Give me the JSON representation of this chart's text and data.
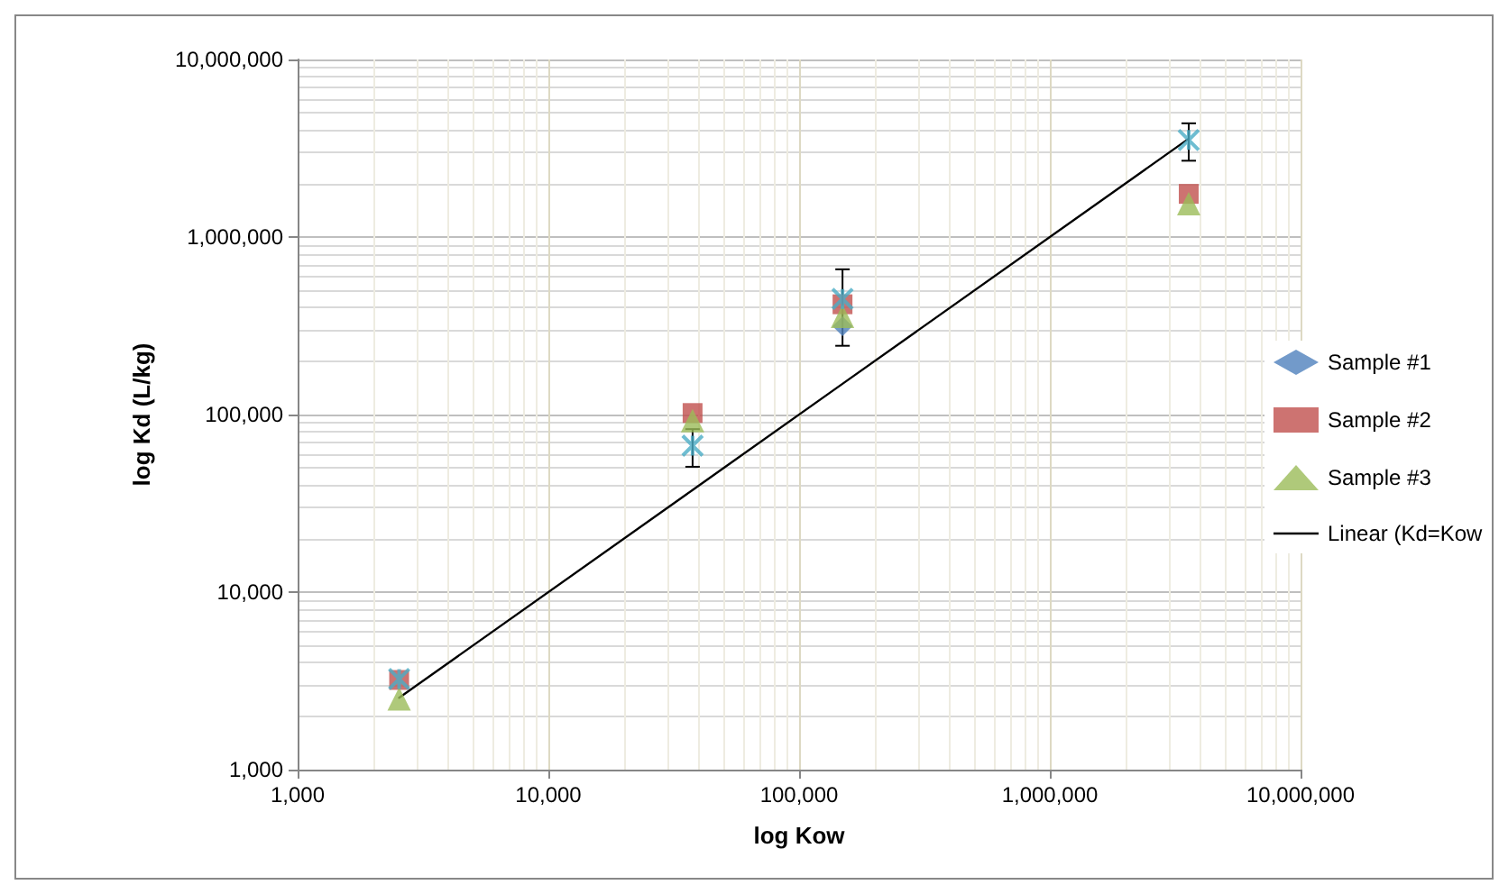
{
  "chart_data": {
    "type": "scatter",
    "xlabel": "log Kow",
    "ylabel": "log Kd (L/kg)",
    "log": "xy",
    "grid": true,
    "legend": "right",
    "xlim": [
      1000,
      10000000
    ],
    "ylim": [
      1000,
      10000000
    ],
    "xticks": [
      {
        "value": 1000,
        "label": "1,000"
      },
      {
        "value": 10000,
        "label": "10,000"
      },
      {
        "value": 100000,
        "label": "100,000"
      },
      {
        "value": 1000000,
        "label": "1,000,000"
      },
      {
        "value": 10000000,
        "label": "10,000,000"
      }
    ],
    "yticks": [
      {
        "value": 1000,
        "label": "1,000"
      },
      {
        "value": 10000,
        "label": "10,000"
      },
      {
        "value": 100000,
        "label": "100,000"
      },
      {
        "value": 1000000,
        "label": "1,000,000"
      },
      {
        "value": 10000000,
        "label": "10,000,000"
      }
    ],
    "x": [
      2540,
      37600,
      149000,
      3580000
    ],
    "series": [
      {
        "name": "Sample #1",
        "color": "#4f81bd",
        "marker": "diamond",
        "values": [
          null,
          null,
          314000,
          null
        ]
      },
      {
        "name": "Sample #2",
        "color": "#c0504d",
        "marker": "square",
        "values": [
          3200,
          102000,
          418000,
          1750000
        ]
      },
      {
        "name": "Sample #3",
        "color": "#9bbb59",
        "marker": "triangle",
        "values": [
          2500,
          92500,
          357000,
          1540000
        ]
      },
      {
        "color": "#4bacc6",
        "marker": "cross",
        "values": [
          3240,
          66800,
          448000,
          3520000
        ],
        "errors": [
          null,
          16000,
          [
            244000,
            658000
          ],
          [
            2690000,
            4370000
          ]
        ]
      },
      {
        "name": "Linear (Kd=Kow",
        "type": "line",
        "color": "#000000",
        "marker": "none",
        "line_style": "solid",
        "values": [
          2540,
          37600,
          149000,
          3580000
        ]
      }
    ]
  }
}
